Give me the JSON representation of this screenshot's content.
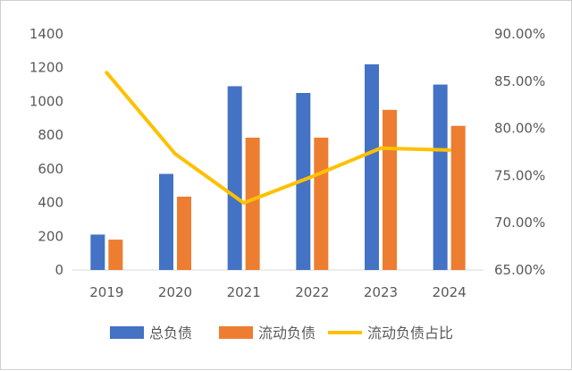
{
  "chart_data": {
    "type": "bar",
    "categories": [
      "2019",
      "2020",
      "2021",
      "2022",
      "2023",
      "2024"
    ],
    "series": [
      {
        "name": "总负债",
        "type": "bar",
        "axis": "left",
        "color": "#4472C4",
        "values": [
          210,
          570,
          1090,
          1050,
          1220,
          1100
        ]
      },
      {
        "name": "流动负债",
        "type": "bar",
        "axis": "left",
        "color": "#ED7D31",
        "values": [
          180,
          435,
          785,
          785,
          950,
          855
        ]
      },
      {
        "name": "流动负债占比",
        "type": "line",
        "axis": "right",
        "color": "#FFC000",
        "values": [
          85.9,
          77.3,
          72.1,
          74.9,
          77.9,
          77.7
        ]
      }
    ],
    "y_left": {
      "ylim": [
        0,
        1400
      ],
      "ticks": [
        "0",
        "200",
        "400",
        "600",
        "800",
        "1000",
        "1200",
        "1400"
      ]
    },
    "y_right": {
      "ylim": [
        65,
        90
      ],
      "ticks": [
        "65.00%",
        "70.00%",
        "75.00%",
        "80.00%",
        "85.00%",
        "90.00%"
      ]
    },
    "grid": false,
    "legend_position": "bottom"
  }
}
